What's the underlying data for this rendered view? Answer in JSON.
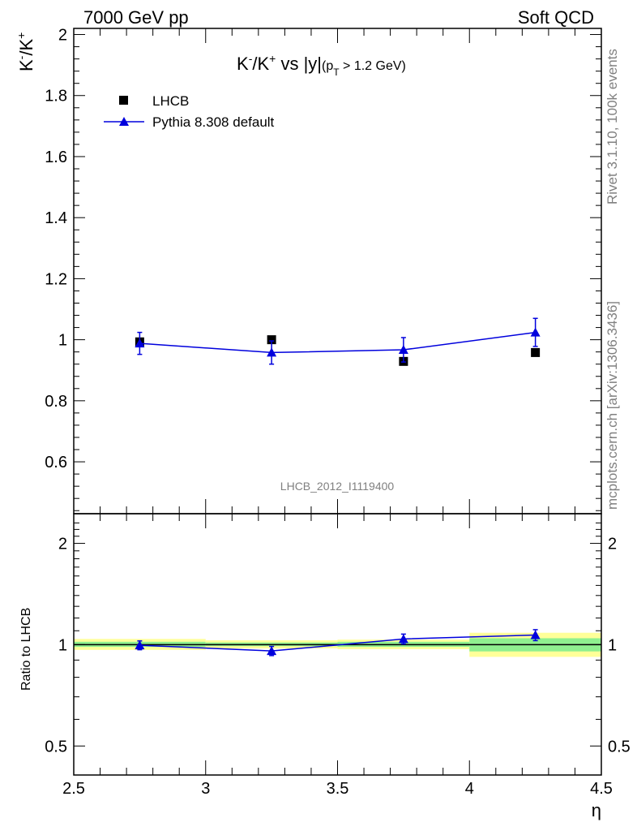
{
  "header": {
    "left": "7000 GeV pp",
    "right": "Soft QCD"
  },
  "side_labels": {
    "rivet": "Rivet 3.1.10,  100k events",
    "mcplots": "mcplots.cern.ch [arXiv:1306.3436]"
  },
  "chart_data": [
    {
      "type": "scatter",
      "title": "K⁻/K⁺ vs |y|(pT > 1.2 GeV)",
      "title_parts": {
        "main": "K",
        "sup1": "-",
        "slash": "/K",
        "sup2": "+",
        "rest": " vs |y|",
        "sub_open": "(p",
        "sub_T": "T",
        "sub_close": " > 1.2 GeV)"
      },
      "ylabel_parts": {
        "a": "K",
        "sup1": "-",
        "b": "/K",
        "sup2": "+"
      },
      "xlabel": "η",
      "watermark": "LHCB_2012_I1119400",
      "xlim": [
        2.5,
        4.5
      ],
      "ylim": [
        0.43,
        2.02
      ],
      "yticks": [
        0.6,
        0.8,
        1,
        1.2,
        1.4,
        1.6,
        1.8,
        2
      ],
      "ytick_labels": [
        "0.6",
        "0.8",
        "1",
        "1.2",
        "1.4",
        "1.6",
        "1.8",
        "2"
      ],
      "legend_position": "top-left",
      "series": [
        {
          "name": "LHCB",
          "marker": "square",
          "color": "#000000",
          "x": [
            2.75,
            3.25,
            3.75,
            4.25
          ],
          "y": [
            0.993,
            1.0,
            0.929,
            0.958
          ],
          "xerr": 0.25
        },
        {
          "name": "Pythia 8.308 default",
          "marker": "triangle",
          "color": "#0000dd",
          "x": [
            2.75,
            3.25,
            3.75,
            4.25
          ],
          "y": [
            0.988,
            0.958,
            0.967,
            1.024
          ],
          "yerr": [
            0.036,
            0.038,
            0.04,
            0.046
          ]
        }
      ]
    },
    {
      "type": "scatter",
      "ylabel": "Ratio to LHCB",
      "xlabel": "η",
      "log_y": true,
      "xlim": [
        2.5,
        4.5
      ],
      "ylim": [
        0.41,
        2.45
      ],
      "yticks": [
        0.5,
        1,
        2
      ],
      "ytick_labels": [
        "0.5",
        "1",
        "2"
      ],
      "xticks": [
        2.5,
        3,
        3.5,
        4,
        4.5
      ],
      "xtick_labels": [
        "2.5",
        "3",
        "3.5",
        "4",
        "4.5"
      ],
      "bands": [
        {
          "x0": 2.5,
          "x1": 3.0,
          "yellow": [
            0.965,
            1.04
          ],
          "green": [
            0.985,
            1.02
          ]
        },
        {
          "x0": 3.0,
          "x1": 3.5,
          "yellow": [
            0.975,
            1.03
          ],
          "green": [
            0.99,
            1.015
          ]
        },
        {
          "x0": 3.5,
          "x1": 4.0,
          "yellow": [
            0.97,
            1.035
          ],
          "green": [
            0.985,
            1.02
          ]
        },
        {
          "x0": 4.0,
          "x1": 4.5,
          "yellow": [
            0.92,
            1.085
          ],
          "green": [
            0.955,
            1.045
          ]
        }
      ],
      "series": [
        {
          "name": "Pythia 8.308 default",
          "color": "#0000dd",
          "x": [
            2.75,
            3.25,
            3.75,
            4.25
          ],
          "y": [
            0.996,
            0.958,
            1.04,
            1.068
          ],
          "yerr": [
            0.03,
            0.03,
            0.035,
            0.04
          ]
        }
      ],
      "colors": {
        "yellow": "#ffff99",
        "green": "#8ff08f"
      }
    }
  ]
}
